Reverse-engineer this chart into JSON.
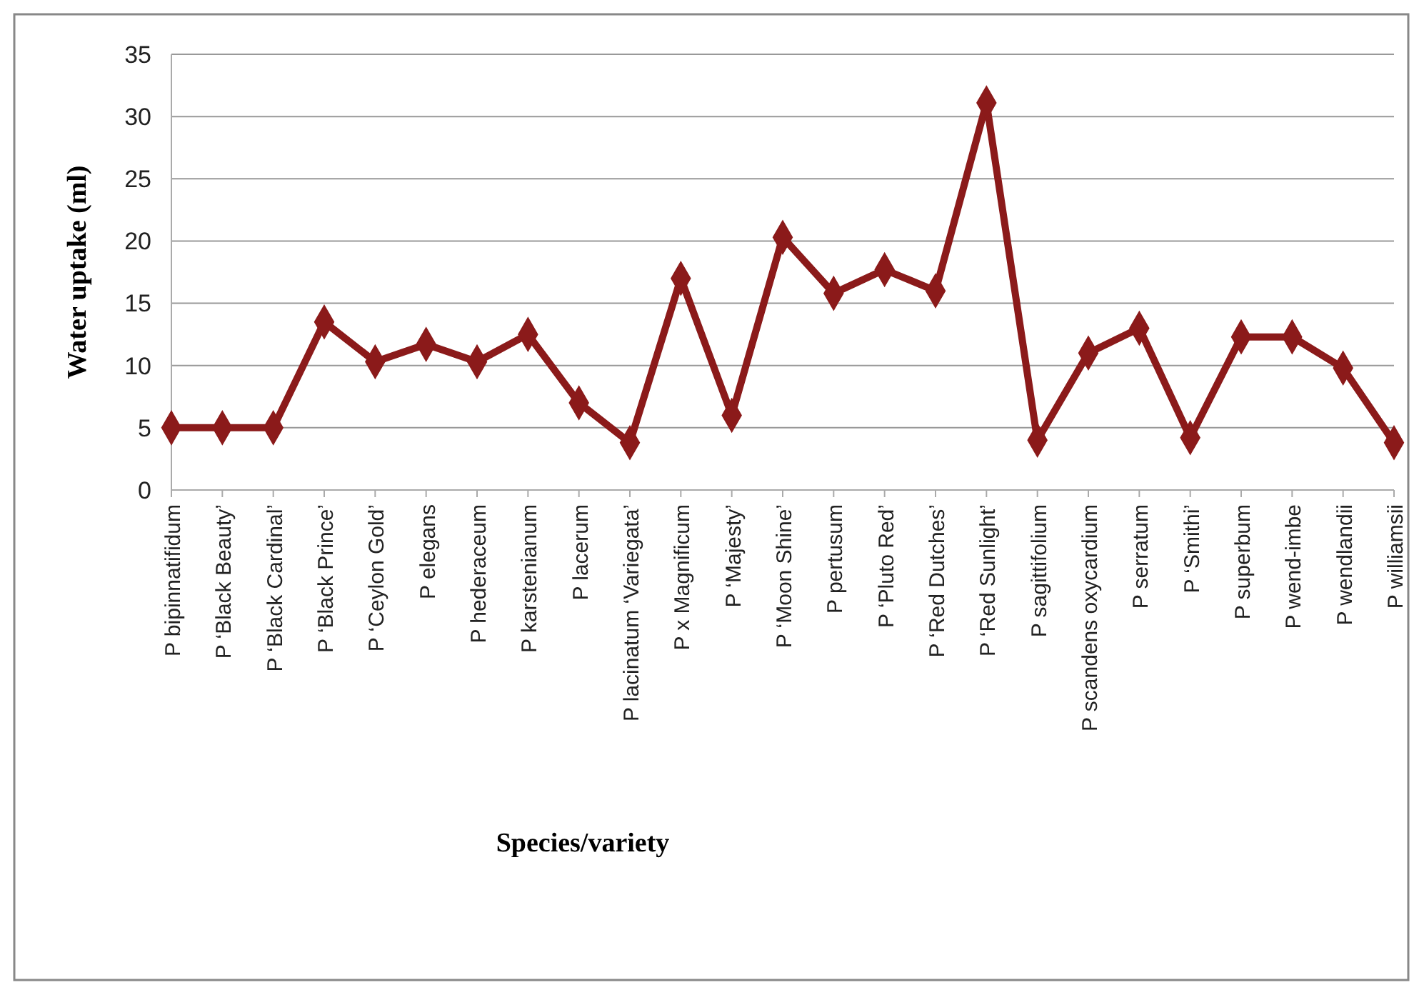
{
  "chart_data": {
    "type": "line",
    "xlabel": "Species/variety",
    "ylabel": "Water uptake (ml)",
    "categories": [
      "P bipinnatifidum",
      "P ‘Black Beauty’",
      "P ‘Black Cardinal’",
      "P ‘Black Prince’",
      "P ‘Ceylon Gold’",
      "P elegans",
      "P hederaceum",
      "P karstenianum",
      "P lacerum",
      "P lacinatum ‘Variegata’",
      "P x Magnificum",
      "P ‘Majesty’",
      "P ‘Moon Shine’",
      "P pertusum",
      "P ‘Pluto Red’",
      "P ‘Red Dutches’",
      "P ‘Red Sunlight’",
      "P sagittifolium",
      "P scandens oxycardium",
      "P serratum",
      "P ‘Smithi’",
      "P superbum",
      "P wend-imbe",
      "P wendlandii",
      "P williamsii"
    ],
    "series": [
      {
        "color": "#8b1a1a",
        "values": [
          5,
          5,
          5,
          13.5,
          10.3,
          11.7,
          10.3,
          12.5,
          7,
          3.8,
          17,
          6,
          20.3,
          15.8,
          17.7,
          16,
          31.1,
          4,
          11,
          13,
          4.2,
          12.3,
          12.3,
          9.8,
          3.8
        ]
      }
    ],
    "ylim": [
      0,
      35
    ],
    "yticks": [
      0,
      5,
      10,
      15,
      20,
      25,
      30,
      35
    ],
    "grid": "y",
    "marker": "diamond",
    "line_style": "solid"
  }
}
